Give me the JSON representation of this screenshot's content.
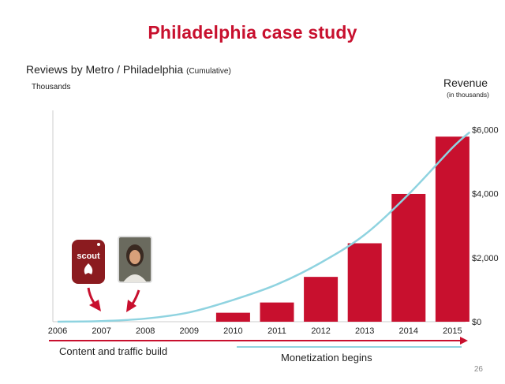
{
  "slide": {
    "title": "Philadelphia case study",
    "subtitle_main": "Reviews by Metro / Philadelphia",
    "subtitle_note": "(Cumulative)",
    "left_units": "Thousands",
    "right_title": "Revenue",
    "right_units": "(in thousands)",
    "phase_1": "Content and traffic build",
    "phase_2": "Monetization begins",
    "page_number": "26",
    "scout_label": "scout"
  },
  "colors": {
    "title": "#c8102e",
    "bars": "#c8102e",
    "line": "#8fd3e0",
    "arrow": "#c8102e",
    "logo_bg": "#8b1b1f"
  },
  "icons": [
    "scout-logo-icon",
    "person-photo-icon"
  ],
  "chart_data": {
    "type": "bar",
    "categories": [
      "2006",
      "2007",
      "2008",
      "2009",
      "2010",
      "2011",
      "2012",
      "2013",
      "2014",
      "2015"
    ],
    "series": [
      {
        "type": "bar",
        "axis": "right",
        "values": [
          0,
          0,
          0,
          0,
          280,
          600,
          1400,
          2450,
          3990,
          5780
        ]
      },
      {
        "type": "line",
        "axis": "left",
        "values": [
          0,
          0.2,
          1,
          3,
          7,
          12,
          19,
          28,
          41,
          56
        ]
      }
    ],
    "right_axis": {
      "ticks": [
        0,
        2000,
        4000,
        6000
      ],
      "tick_labels": [
        "$0",
        "$2,000",
        "$4,000",
        "$6,000"
      ],
      "range": [
        0,
        6600
      ]
    },
    "left_axis": {
      "range": [
        0,
        68
      ]
    },
    "grid": false,
    "legend": "none"
  }
}
